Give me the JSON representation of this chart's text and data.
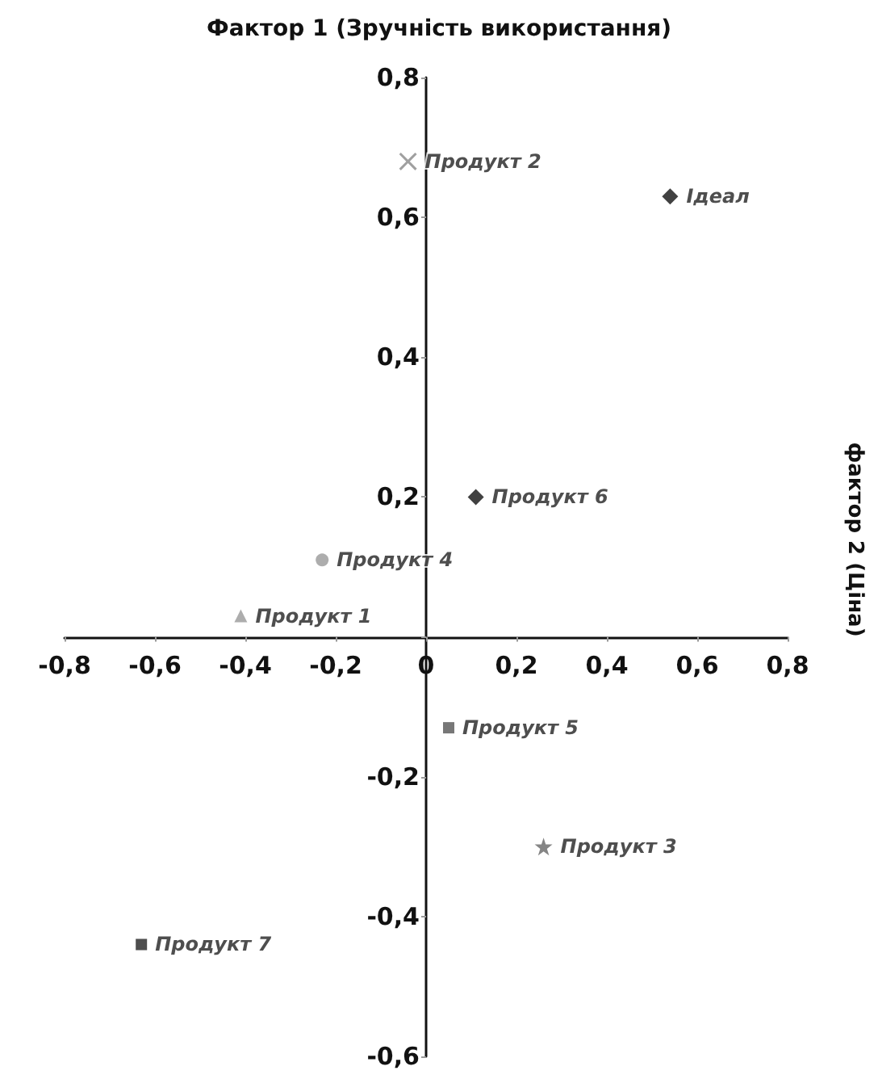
{
  "chart_data": {
    "type": "scatter",
    "title": "Фактор 1 (Зручність використання)",
    "ylabel": "фактор 2 (Ціна)",
    "xlim": [
      -0.8,
      0.8
    ],
    "ylim": [
      -0.6,
      0.8
    ],
    "xticks": [
      {
        "value": -0.8,
        "label": "-0,8"
      },
      {
        "value": -0.6,
        "label": "-0,6"
      },
      {
        "value": -0.4,
        "label": "-0,4"
      },
      {
        "value": -0.2,
        "label": "-0,2"
      },
      0,
      {
        "value": 0.2,
        "label": "0,2"
      },
      {
        "value": 0.4,
        "label": "0,4"
      },
      {
        "value": 0.6,
        "label": "0,6"
      },
      {
        "value": 0.8,
        "label": "0,8"
      }
    ],
    "yticks": [
      {
        "value": -0.6,
        "label": "-0,6"
      },
      {
        "value": -0.4,
        "label": "-0,4"
      },
      {
        "value": -0.2,
        "label": "-0,2"
      },
      {
        "value": 0,
        "label": null
      },
      {
        "value": 0.2,
        "label": "0,2"
      },
      {
        "value": 0.4,
        "label": "0,4"
      },
      {
        "value": 0.6,
        "label": "0,6"
      },
      {
        "value": 0.8,
        "label": "0,8"
      }
    ],
    "grid": false,
    "legend": false,
    "series": [
      {
        "name": "Продукт 2",
        "color": "#888888",
        "marker": "cross",
        "x": [
          -0.04
        ],
        "values": [
          0.68
        ]
      },
      {
        "name": "Ідеал",
        "color": "#111111",
        "marker": "diamond",
        "x": [
          0.54
        ],
        "values": [
          0.63
        ]
      },
      {
        "name": "Продукт 6",
        "color": "#111111",
        "marker": "diamond",
        "x": [
          0.11
        ],
        "values": [
          0.2
        ]
      },
      {
        "name": "Продукт 4",
        "color": "#999999",
        "marker": "circle",
        "x": [
          -0.23
        ],
        "values": [
          0.11
        ]
      },
      {
        "name": "Продукт 1",
        "color": "#999999",
        "marker": "triangle",
        "x": [
          -0.41
        ],
        "values": [
          0.03
        ]
      },
      {
        "name": "Продукт 5",
        "color": "#555555",
        "marker": "square",
        "x": [
          0.05
        ],
        "values": [
          -0.13
        ]
      },
      {
        "name": "Продукт 3",
        "color": "#666666",
        "marker": "star",
        "x": [
          0.26
        ],
        "values": [
          -0.3
        ]
      },
      {
        "name": "Продукт 7",
        "color": "#222222",
        "marker": "square",
        "x": [
          -0.63
        ],
        "values": [
          -0.44
        ]
      }
    ]
  }
}
